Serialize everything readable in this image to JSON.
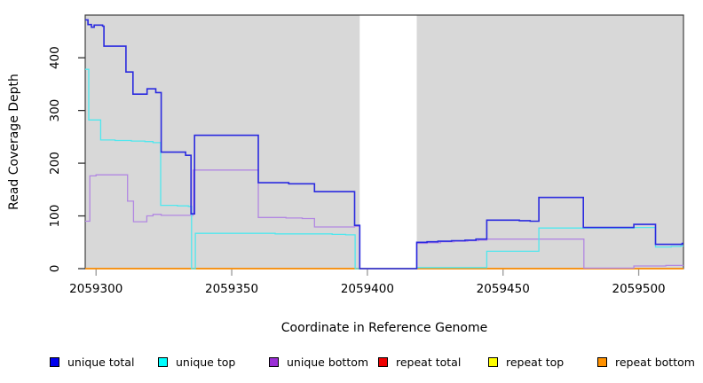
{
  "chart_data": {
    "type": "line",
    "subtype": "step-coverage-plot",
    "title": "",
    "xlabel": "Coordinate in Reference Genome",
    "ylabel": "Read Coverage Depth",
    "xlim": [
      2059296,
      2059516.5
    ],
    "ylim": [
      0,
      481
    ],
    "x_ticks": [
      2059300,
      2059350,
      2059400,
      2059450,
      2059500
    ],
    "y_ticks": [
      0,
      100,
      200,
      300,
      400
    ],
    "grid": "off",
    "legend_position": "bottom",
    "background": {
      "plot_bg": "#d8d8d8",
      "gap_region": {
        "x0": 2059397.2,
        "x1": 2059418.2,
        "color": "#ffffff"
      },
      "box_color": "#3f3f3f",
      "x_tick_color": "#999999",
      "y_tick_color": "#303030"
    },
    "series": [
      {
        "name": "repeat total",
        "line_color": "#dd0000",
        "line_width": 1.3,
        "points": [
          [
            2059296,
            0
          ],
          [
            2059516.5,
            0
          ]
        ]
      },
      {
        "name": "repeat top",
        "line_color": "#ffff00",
        "line_width": 1.3,
        "points": [
          [
            2059296,
            0
          ],
          [
            2059516.5,
            0
          ]
        ]
      },
      {
        "name": "repeat bottom",
        "line_color": "#ff8c00",
        "line_width": 1.6,
        "points": [
          [
            2059296,
            0
          ],
          [
            2059516.5,
            0
          ]
        ]
      },
      {
        "name": "unique bottom",
        "line_color": "#b287e2",
        "line_width": 1.3,
        "points": [
          [
            2059296,
            90
          ],
          [
            2059297.7,
            176
          ],
          [
            2059300,
            178
          ],
          [
            2059311.6,
            128
          ],
          [
            2059313.8,
            89
          ],
          [
            2059318.7,
            100
          ],
          [
            2059321,
            103
          ],
          [
            2059324,
            101
          ],
          [
            2059335.8,
            187
          ],
          [
            2059359.8,
            97
          ],
          [
            2059370,
            96
          ],
          [
            2059376,
            95
          ],
          [
            2059380.5,
            79
          ],
          [
            2059395.3,
            80
          ],
          [
            2059397.2,
            0
          ],
          [
            2059418.2,
            48
          ],
          [
            2059422,
            49
          ],
          [
            2059427,
            51
          ],
          [
            2059432,
            52
          ],
          [
            2059437,
            53
          ],
          [
            2059441,
            54
          ],
          [
            2059444,
            56
          ],
          [
            2059479.8,
            1
          ],
          [
            2059498.2,
            5
          ],
          [
            2059510,
            6
          ],
          [
            2059516.5,
            6
          ]
        ]
      },
      {
        "name": "unique top",
        "line_color": "#4fe7ee",
        "line_width": 1.3,
        "points": [
          [
            2059296,
            378
          ],
          [
            2059297.3,
            282
          ],
          [
            2059301.7,
            244
          ],
          [
            2059307,
            243
          ],
          [
            2059313,
            242
          ],
          [
            2059318,
            241
          ],
          [
            2059321,
            239
          ],
          [
            2059323.8,
            120
          ],
          [
            2059330,
            119
          ],
          [
            2059334,
            118
          ],
          [
            2059335.2,
            0
          ],
          [
            2059336.6,
            67
          ],
          [
            2059352,
            67
          ],
          [
            2059366,
            66
          ],
          [
            2059380,
            66
          ],
          [
            2059387,
            65
          ],
          [
            2059392,
            64
          ],
          [
            2059395.5,
            0
          ],
          [
            2059418.2,
            2
          ],
          [
            2059444,
            33
          ],
          [
            2059463.2,
            77
          ],
          [
            2059492,
            77
          ],
          [
            2059498.2,
            78
          ],
          [
            2059506.2,
            41
          ],
          [
            2059512,
            42
          ],
          [
            2059515.5,
            43
          ],
          [
            2059516.5,
            43
          ]
        ]
      },
      {
        "name": "unique total",
        "line_color": "#2a2adf",
        "line_width": 1.6,
        "points": [
          [
            2059296,
            472
          ],
          [
            2059297,
            463
          ],
          [
            2059298.3,
            458
          ],
          [
            2059299.3,
            462
          ],
          [
            2059302.4,
            460
          ],
          [
            2059302.9,
            422
          ],
          [
            2059311,
            373
          ],
          [
            2059313.6,
            331
          ],
          [
            2059318.8,
            341
          ],
          [
            2059322,
            334
          ],
          [
            2059324,
            221
          ],
          [
            2059333,
            215
          ],
          [
            2059335,
            104
          ],
          [
            2059336.3,
            253
          ],
          [
            2059359.8,
            163
          ],
          [
            2059371,
            161
          ],
          [
            2059380.5,
            146
          ],
          [
            2059395.3,
            82
          ],
          [
            2059397.2,
            0
          ],
          [
            2059418.2,
            50
          ],
          [
            2059422,
            51
          ],
          [
            2059426,
            52
          ],
          [
            2059431,
            53
          ],
          [
            2059436,
            54
          ],
          [
            2059440,
            56
          ],
          [
            2059444,
            92
          ],
          [
            2059456,
            91
          ],
          [
            2059460,
            90
          ],
          [
            2059463.2,
            135
          ],
          [
            2059479.6,
            78
          ],
          [
            2059498.2,
            84
          ],
          [
            2059506.2,
            46
          ],
          [
            2059516,
            48
          ],
          [
            2059516.5,
            48
          ]
        ]
      }
    ],
    "legend": [
      {
        "label": "unique total",
        "swatch_color": "#0000ee"
      },
      {
        "label": "unique top",
        "swatch_color": "#00ffff"
      },
      {
        "label": "unique bottom",
        "swatch_color": "#9b2fd6"
      },
      {
        "label": "repeat total",
        "swatch_color": "#ee0000"
      },
      {
        "label": "repeat top",
        "swatch_color": "#ffff00"
      },
      {
        "label": "repeat bottom",
        "swatch_color": "#ff9100"
      }
    ]
  }
}
